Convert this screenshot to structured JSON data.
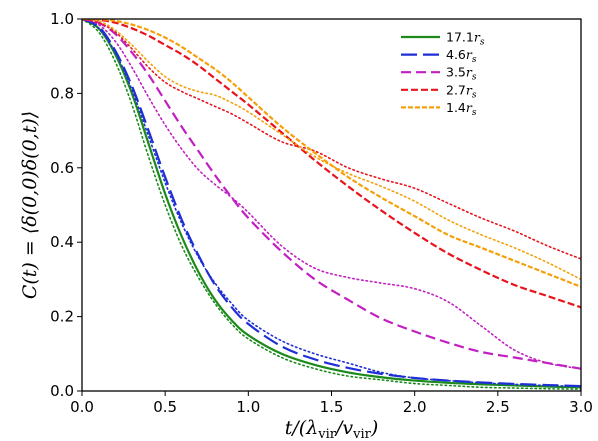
{
  "chart_data": {
    "type": "line",
    "title": "",
    "xlabel": "t/(λ_vir/v_vir)",
    "ylabel": "C(t) = ⟨δ(0,0)δ(0,t)⟩",
    "xlim": [
      0.0,
      3.0
    ],
    "ylim": [
      0.0,
      1.0
    ],
    "xticks": [
      "0.0",
      "0.5",
      "1.0",
      "1.5",
      "2.0",
      "2.5",
      "3.0"
    ],
    "yticks": [
      "0.0",
      "0.2",
      "0.4",
      "0.6",
      "0.8",
      "1.0"
    ],
    "grid": false,
    "legend_position": "top-right",
    "x": [
      0.0,
      0.1,
      0.2,
      0.3,
      0.4,
      0.5,
      0.6,
      0.7,
      0.8,
      0.9,
      1.0,
      1.2,
      1.4,
      1.6,
      1.8,
      2.0,
      2.2,
      2.4,
      2.6,
      2.8,
      3.0
    ],
    "series": [
      {
        "name": "17.1",
        "name_sub": "r",
        "name_subscript": "s",
        "color": "#1b8a1b",
        "dash": "",
        "values": [
          1.0,
          0.975,
          0.905,
          0.8,
          0.665,
          0.53,
          0.415,
          0.32,
          0.245,
          0.19,
          0.15,
          0.1,
          0.07,
          0.05,
          0.037,
          0.028,
          0.022,
          0.018,
          0.015,
          0.012,
          0.01
        ],
        "dotted_values": [
          1.0,
          0.965,
          0.885,
          0.77,
          0.63,
          0.5,
          0.39,
          0.305,
          0.235,
          0.18,
          0.14,
          0.09,
          0.06,
          0.04,
          0.03,
          0.02,
          0.015,
          0.01,
          0.008,
          0.006,
          0.005
        ]
      },
      {
        "name": "4.6",
        "name_sub": "r",
        "name_subscript": "s",
        "color": "#1f2fd6",
        "dash": "16,6",
        "values": [
          1.0,
          0.98,
          0.915,
          0.82,
          0.7,
          0.575,
          0.46,
          0.365,
          0.285,
          0.225,
          0.18,
          0.12,
          0.085,
          0.062,
          0.046,
          0.035,
          0.028,
          0.023,
          0.019,
          0.016,
          0.013
        ],
        "dotted_values": [
          1.0,
          0.975,
          0.91,
          0.81,
          0.685,
          0.56,
          0.45,
          0.36,
          0.29,
          0.235,
          0.19,
          0.135,
          0.1,
          0.075,
          0.05,
          0.035,
          0.028,
          0.022,
          0.018,
          0.015,
          0.012
        ]
      },
      {
        "name": "3.5",
        "name_sub": "r",
        "name_subscript": "s",
        "color": "#c21fc2",
        "dash": "10,5",
        "values": [
          1.0,
          0.99,
          0.96,
          0.91,
          0.85,
          0.78,
          0.71,
          0.645,
          0.58,
          0.52,
          0.465,
          0.375,
          0.3,
          0.245,
          0.195,
          0.16,
          0.13,
          0.105,
          0.09,
          0.075,
          0.06
        ],
        "dotted_values": [
          1.0,
          0.985,
          0.94,
          0.87,
          0.79,
          0.715,
          0.65,
          0.595,
          0.555,
          0.52,
          0.48,
          0.39,
          0.33,
          0.305,
          0.29,
          0.275,
          0.24,
          0.175,
          0.11,
          0.075,
          0.06
        ]
      },
      {
        "name": "2.7",
        "name_sub": "r",
        "name_subscript": "s",
        "color": "#e8141c",
        "dash": "7,3",
        "values": [
          1.0,
          0.998,
          0.99,
          0.975,
          0.955,
          0.93,
          0.905,
          0.875,
          0.84,
          0.805,
          0.77,
          0.695,
          0.62,
          0.55,
          0.485,
          0.425,
          0.37,
          0.325,
          0.285,
          0.255,
          0.225
        ],
        "dotted_values": [
          1.0,
          0.99,
          0.965,
          0.92,
          0.87,
          0.83,
          0.805,
          0.785,
          0.765,
          0.745,
          0.72,
          0.67,
          0.645,
          0.6,
          0.57,
          0.545,
          0.505,
          0.465,
          0.43,
          0.39,
          0.355
        ]
      },
      {
        "name": "1.4",
        "name_sub": "r",
        "name_subscript": "s",
        "color": "#f5a00a",
        "dash": "5,2",
        "values": [
          1.0,
          1.0,
          0.995,
          0.985,
          0.97,
          0.95,
          0.925,
          0.895,
          0.865,
          0.83,
          0.79,
          0.71,
          0.64,
          0.575,
          0.52,
          0.47,
          0.42,
          0.385,
          0.35,
          0.315,
          0.28
        ],
        "dotted_values": [
          1.0,
          0.995,
          0.97,
          0.93,
          0.885,
          0.845,
          0.82,
          0.805,
          0.795,
          0.775,
          0.75,
          0.69,
          0.63,
          0.585,
          0.55,
          0.51,
          0.46,
          0.42,
          0.385,
          0.345,
          0.3
        ]
      }
    ]
  }
}
